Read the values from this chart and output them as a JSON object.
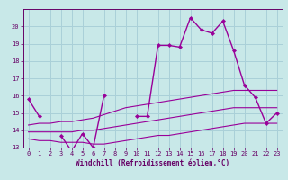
{
  "xlabel": "Windchill (Refroidissement éolien,°C)",
  "bg_color": "#c8e8e8",
  "grid_color": "#aad0d8",
  "line_color": "#990099",
  "spine_color": "#660066",
  "x_hours": [
    0,
    1,
    2,
    3,
    4,
    5,
    6,
    7,
    8,
    9,
    10,
    11,
    12,
    13,
    14,
    15,
    16,
    17,
    18,
    19,
    20,
    21,
    22,
    23
  ],
  "series_actual": [
    15.8,
    14.8,
    null,
    13.7,
    12.8,
    13.8,
    13.0,
    16.0,
    null,
    null,
    14.8,
    14.8,
    18.9,
    18.9,
    18.8,
    20.5,
    19.8,
    19.6,
    20.3,
    18.6,
    16.6,
    15.9,
    14.4,
    15.0
  ],
  "series_min": [
    13.5,
    13.4,
    13.4,
    13.3,
    13.3,
    13.3,
    13.2,
    13.2,
    13.3,
    13.4,
    13.5,
    13.6,
    13.7,
    13.7,
    13.8,
    13.9,
    14.0,
    14.1,
    14.2,
    14.3,
    14.4,
    14.4,
    14.4,
    14.4
  ],
  "series_mean": [
    13.9,
    13.9,
    13.9,
    13.9,
    13.9,
    14.0,
    14.0,
    14.1,
    14.2,
    14.3,
    14.4,
    14.5,
    14.6,
    14.7,
    14.8,
    14.9,
    15.0,
    15.1,
    15.2,
    15.3,
    15.3,
    15.3,
    15.3,
    15.3
  ],
  "series_max": [
    14.3,
    14.4,
    14.4,
    14.5,
    14.5,
    14.6,
    14.7,
    14.9,
    15.1,
    15.3,
    15.4,
    15.5,
    15.6,
    15.7,
    15.8,
    15.9,
    16.0,
    16.1,
    16.2,
    16.3,
    16.3,
    16.3,
    16.3,
    16.3
  ],
  "ylim": [
    13,
    21
  ],
  "xlim_min": -0.5,
  "xlim_max": 23.5,
  "yticks": [
    13,
    14,
    15,
    16,
    17,
    18,
    19,
    20
  ],
  "xticks": [
    0,
    1,
    2,
    3,
    4,
    5,
    6,
    7,
    8,
    9,
    10,
    11,
    12,
    13,
    14,
    15,
    16,
    17,
    18,
    19,
    20,
    21,
    22,
    23
  ],
  "tick_fontsize": 5.0,
  "xlabel_fontsize": 5.5,
  "linewidth_stat": 0.8,
  "linewidth_actual": 1.0,
  "markersize": 2.2
}
